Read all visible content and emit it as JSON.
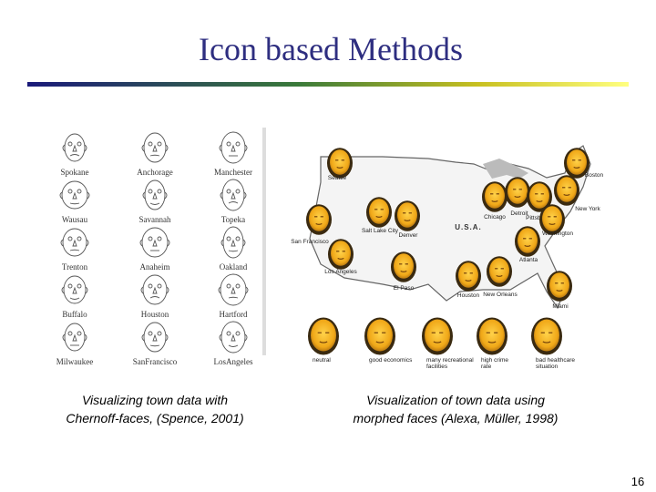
{
  "title": "Icon based Methods",
  "chernoff": {
    "cities": [
      "Spokane",
      "Anchorage",
      "Manchester",
      "Wausau",
      "Savannah",
      "Topeka",
      "Trenton",
      "Anaheim",
      "Oakland",
      "Buffalo",
      "Houston",
      "Hartford",
      "Milwaukee",
      "SanFrancisco",
      "LosAngeles"
    ],
    "caption": [
      "Visualizing town data with",
      "Chernoff-faces, (Spence, 2001)"
    ]
  },
  "morphed": {
    "country": "U.S.A.",
    "cities": [
      "Seattle",
      "Salt Lake City",
      "Denver",
      "San Francisco",
      "Los Angeles",
      "El Paso",
      "Houston",
      "New Orleans",
      "Chicago",
      "Detroit",
      "Pittsburg",
      "Boston",
      "New York",
      "Washington",
      "Atlanta",
      "Miami"
    ],
    "legend": [
      [
        "neutral"
      ],
      [
        "good economics"
      ],
      [
        "many recreational",
        "facilities"
      ],
      [
        "high crime",
        "rate"
      ],
      [
        "bad healthcare",
        "situation"
      ]
    ],
    "caption": [
      "Visualization of town data using",
      "morphed faces (Alexa, Müller, 1998)"
    ]
  },
  "page_number": "16"
}
